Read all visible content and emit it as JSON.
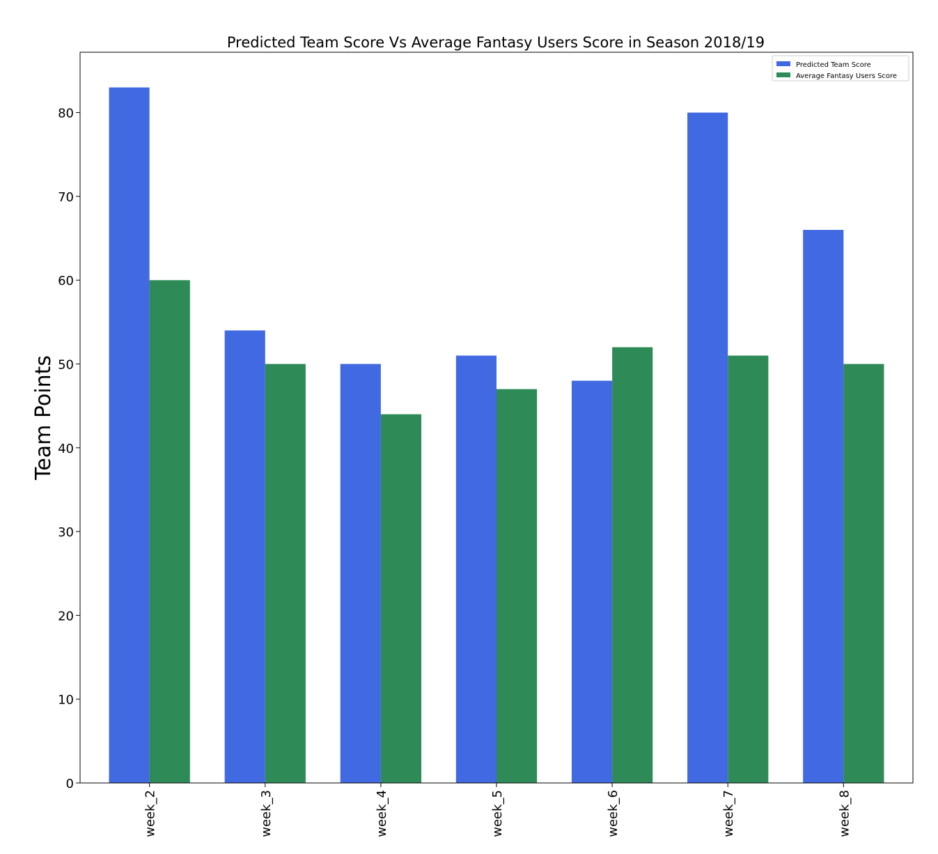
{
  "chart_data": {
    "type": "bar",
    "title": "Predicted Team Score Vs Average Fantasy Users Score in Season 2018/19",
    "xlabel": "",
    "ylabel": "Team Points",
    "categories": [
      "week_2",
      "week_3",
      "week_4",
      "week_5",
      "week_6",
      "week_7",
      "week_8"
    ],
    "series": [
      {
        "name": "Predicted Team Score",
        "color": "#4169e1",
        "values": [
          83,
          54,
          50,
          51,
          48,
          80,
          66
        ]
      },
      {
        "name": "Average Fantasy Users Score",
        "color": "#2e8b57",
        "values": [
          60,
          50,
          44,
          47,
          52,
          51,
          50
        ]
      }
    ],
    "yticks": [
      0,
      10,
      20,
      30,
      40,
      50,
      60,
      70,
      80
    ],
    "ylim": [
      0,
      87.2
    ],
    "grid": false,
    "legend_position": "top-right",
    "xtick_rotation": "vertical"
  }
}
